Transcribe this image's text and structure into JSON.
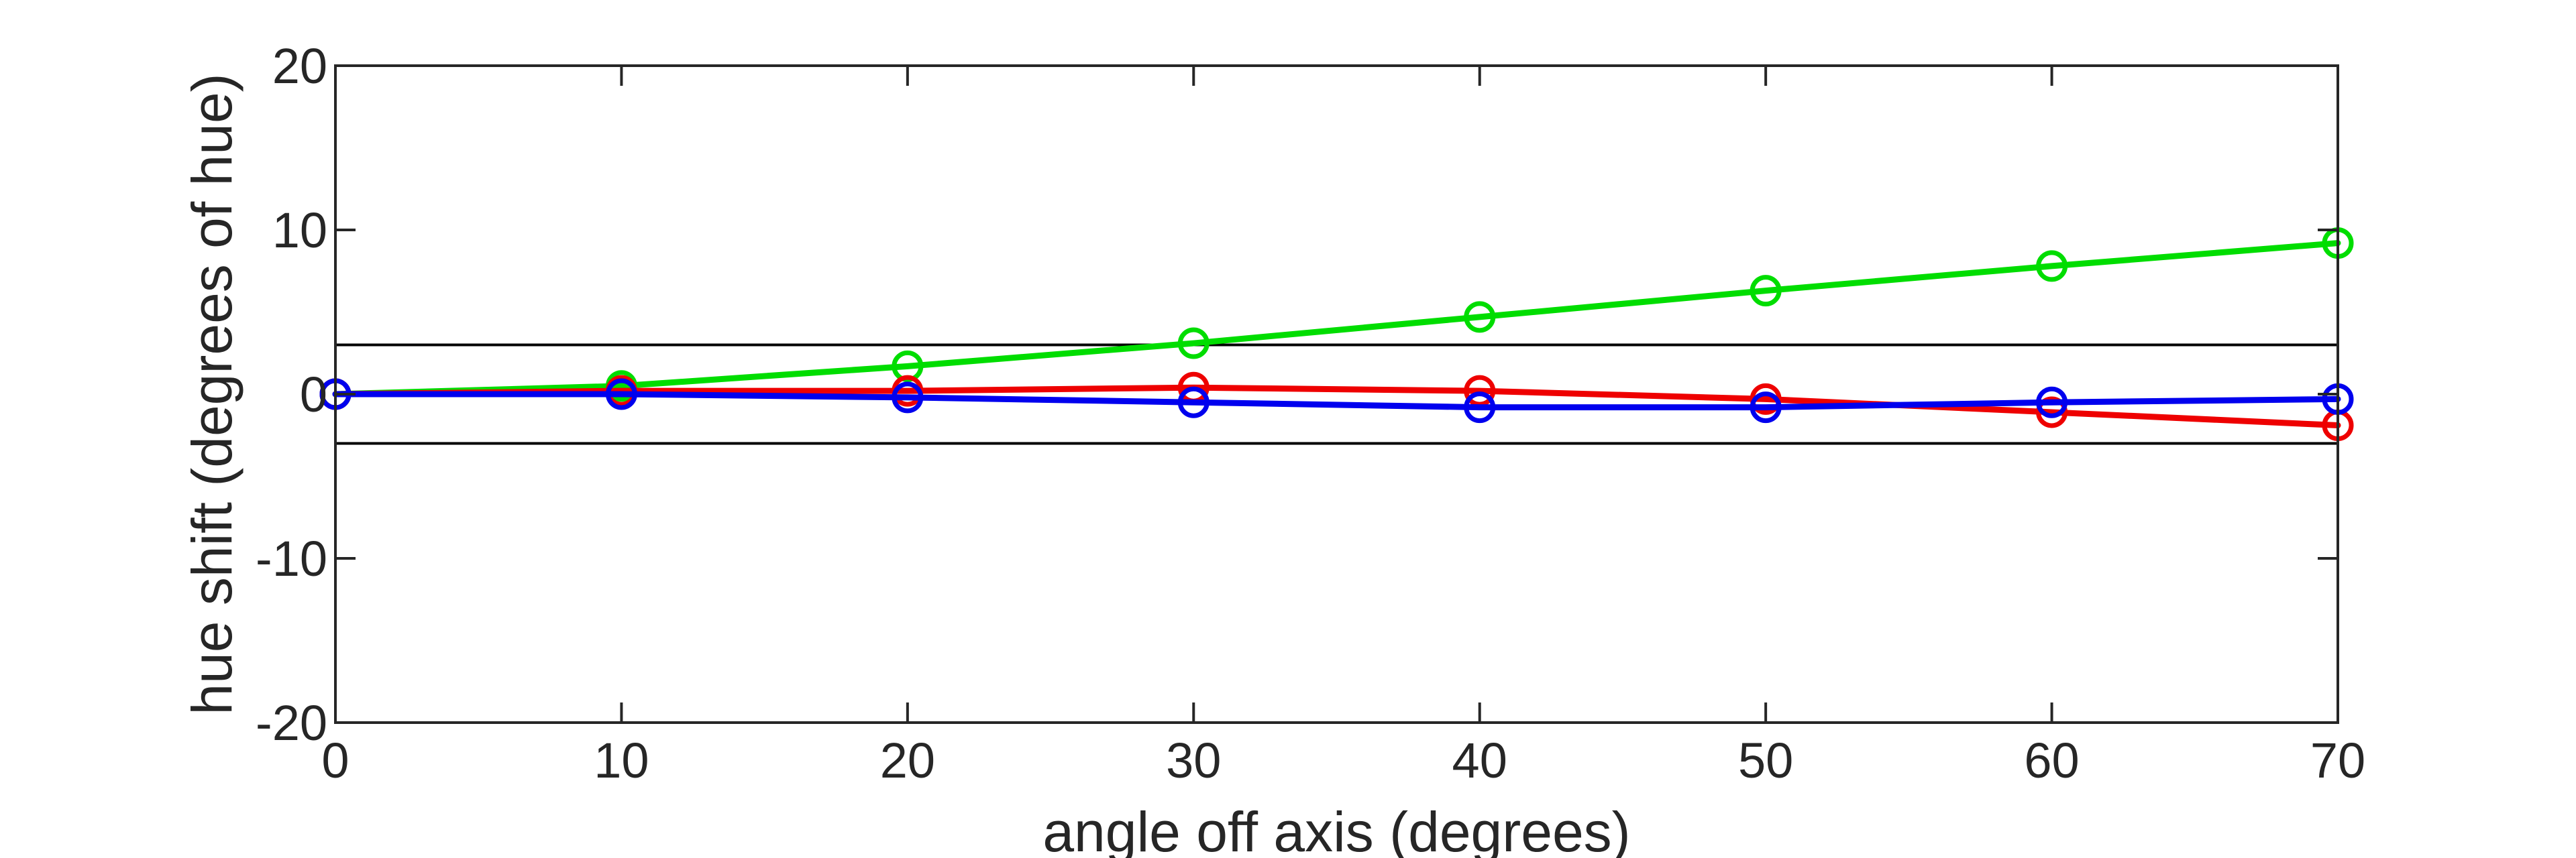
{
  "chart_data": {
    "type": "line",
    "xlabel": "angle off axis (degrees)",
    "ylabel": "hue shift (degrees of hue)",
    "xlim": [
      0,
      70
    ],
    "ylim": [
      -20,
      20
    ],
    "xticks": [
      "0",
      "10",
      "20",
      "30",
      "40",
      "50",
      "60",
      "70"
    ],
    "yticks": [
      "-20",
      "-10",
      "0",
      "10",
      "20"
    ],
    "grid": false,
    "reference_lines": [
      3,
      -3
    ],
    "x": [
      0,
      10,
      20,
      30,
      40,
      50,
      60,
      70
    ],
    "series": [
      {
        "color": "#00dd00",
        "values": [
          0,
          0.5,
          1.7,
          3.1,
          4.7,
          6.3,
          7.8,
          9.2
        ]
      },
      {
        "color": "#ee0000",
        "values": [
          0,
          0.2,
          0.2,
          0.4,
          0.2,
          -0.3,
          -1.1,
          -1.9
        ]
      },
      {
        "color": "#0000ee",
        "values": [
          0,
          0,
          -0.2,
          -0.5,
          -0.8,
          -0.8,
          -0.5,
          -0.3
        ]
      }
    ],
    "marker": "circle"
  }
}
